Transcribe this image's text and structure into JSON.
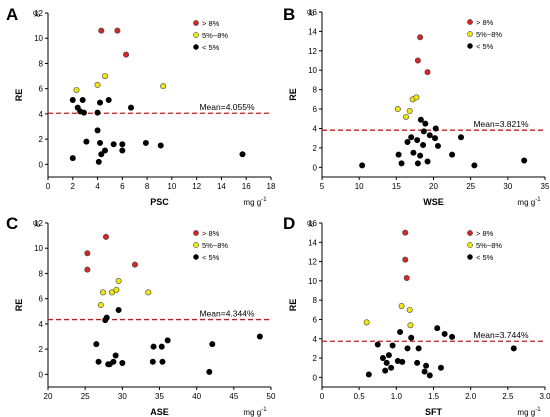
{
  "figure": {
    "legend": [
      {
        "label": "> 8%",
        "color": "#d62728"
      },
      {
        "label": "5%~8%",
        "color": "#f0e612"
      },
      {
        "label": "< 5%",
        "color": "#000000"
      }
    ],
    "threshold_line_color": "#b22222"
  },
  "chart_data": [
    {
      "panel": "A",
      "type": "scatter",
      "xlabel": "PSC",
      "xunit": "mg g",
      "xunit_exp": "-1",
      "ylabel": "RE",
      "yunit": "%",
      "xlim": [
        0,
        18
      ],
      "ylim": [
        -1,
        12
      ],
      "xticks": [
        0,
        2,
        4,
        6,
        8,
        10,
        12,
        14,
        16,
        18
      ],
      "yticks": [
        0,
        2,
        4,
        6,
        8,
        10,
        12
      ],
      "mean": 4.055,
      "mean_label": "Mean=4.055%",
      "points_red": [
        [
          4.3,
          10.6
        ],
        [
          5.6,
          10.6
        ],
        [
          6.3,
          8.7
        ]
      ],
      "points_yellow": [
        [
          2.3,
          5.9
        ],
        [
          4.0,
          6.3
        ],
        [
          4.6,
          7.0
        ],
        [
          9.3,
          6.2
        ]
      ],
      "points_black": [
        [
          2.0,
          5.1
        ],
        [
          2.8,
          5.1
        ],
        [
          2.4,
          4.5
        ],
        [
          2.6,
          4.2
        ],
        [
          2.9,
          4.1
        ],
        [
          4.0,
          4.1
        ],
        [
          4.2,
          4.9
        ],
        [
          4.9,
          5.1
        ],
        [
          6.7,
          4.5
        ],
        [
          4.0,
          2.7
        ],
        [
          4.2,
          1.7
        ],
        [
          4.6,
          1.1
        ],
        [
          5.3,
          1.6
        ],
        [
          6.0,
          1.6
        ],
        [
          6.0,
          1.1
        ],
        [
          7.9,
          1.7
        ],
        [
          9.1,
          1.5
        ],
        [
          4.3,
          0.8
        ],
        [
          4.1,
          0.2
        ],
        [
          2.0,
          0.5
        ],
        [
          15.7,
          0.8
        ],
        [
          3.1,
          1.8
        ]
      ]
    },
    {
      "panel": "B",
      "type": "scatter",
      "xlabel": "WSE",
      "xunit": "mg g",
      "xunit_exp": "-1",
      "ylabel": "RE",
      "yunit": "%",
      "xlim": [
        5,
        35
      ],
      "ylim": [
        -1,
        16
      ],
      "xticks": [
        5,
        10,
        15,
        20,
        25,
        30,
        35
      ],
      "yticks": [
        0,
        2,
        4,
        6,
        8,
        10,
        12,
        14,
        16
      ],
      "mean": 3.821,
      "mean_label": "Mean=3.821%",
      "points_red": [
        [
          18.2,
          13.4
        ],
        [
          17.9,
          11.0
        ],
        [
          19.2,
          9.8
        ]
      ],
      "points_yellow": [
        [
          15.2,
          6.0
        ],
        [
          16.8,
          5.8
        ],
        [
          17.2,
          7.0
        ],
        [
          17.7,
          7.2
        ],
        [
          16.3,
          5.2
        ]
      ],
      "points_black": [
        [
          18.3,
          4.9
        ],
        [
          18.9,
          4.5
        ],
        [
          18.7,
          3.7
        ],
        [
          19.5,
          3.3
        ],
        [
          20.2,
          3.0
        ],
        [
          20.3,
          4.0
        ],
        [
          23.7,
          3.1
        ],
        [
          17.0,
          3.1
        ],
        [
          17.8,
          2.8
        ],
        [
          16.5,
          2.6
        ],
        [
          18.6,
          2.3
        ],
        [
          20.6,
          2.2
        ],
        [
          22.5,
          1.3
        ],
        [
          17.3,
          1.5
        ],
        [
          15.3,
          1.3
        ],
        [
          18.2,
          1.2
        ],
        [
          15.7,
          0.4
        ],
        [
          17.9,
          0.4
        ],
        [
          19.2,
          0.6
        ],
        [
          10.4,
          0.2
        ],
        [
          25.5,
          0.2
        ],
        [
          32.2,
          0.7
        ]
      ]
    },
    {
      "panel": "C",
      "type": "scatter",
      "xlabel": "ASE",
      "xunit": "mg g",
      "xunit_exp": "-1",
      "ylabel": "RE",
      "yunit": "%",
      "xlim": [
        20,
        50
      ],
      "ylim": [
        -1,
        12
      ],
      "xticks": [
        20,
        25,
        30,
        35,
        40,
        45,
        50
      ],
      "yticks": [
        0,
        2,
        4,
        6,
        8,
        10,
        12
      ],
      "mean": 4.344,
      "mean_label": "Mean=4.344%",
      "points_red": [
        [
          27.8,
          10.9
        ],
        [
          25.3,
          9.6
        ],
        [
          25.3,
          8.3
        ],
        [
          31.7,
          8.7
        ]
      ],
      "points_yellow": [
        [
          27.1,
          5.5
        ],
        [
          27.4,
          6.5
        ],
        [
          28.6,
          6.5
        ],
        [
          29.2,
          6.7
        ],
        [
          29.5,
          7.4
        ],
        [
          33.5,
          6.5
        ]
      ],
      "points_black": [
        [
          27.9,
          4.5
        ],
        [
          29.5,
          5.1
        ],
        [
          27.7,
          4.3
        ],
        [
          26.5,
          2.4
        ],
        [
          34.2,
          2.2
        ],
        [
          35.3,
          2.2
        ],
        [
          36.1,
          2.7
        ],
        [
          42.1,
          2.4
        ],
        [
          48.5,
          3.0
        ],
        [
          26.8,
          1.0
        ],
        [
          28.1,
          0.8
        ],
        [
          28.8,
          1.0
        ],
        [
          29.1,
          1.5
        ],
        [
          30.0,
          0.9
        ],
        [
          34.1,
          1.0
        ],
        [
          35.4,
          1.0
        ],
        [
          28.3,
          0.8
        ],
        [
          41.7,
          0.2
        ]
      ]
    },
    {
      "panel": "D",
      "type": "scatter",
      "xlabel": "SFT",
      "xunit": "mg g",
      "xunit_exp": "-1",
      "ylabel": "RE",
      "yunit": "%",
      "xlim": [
        0,
        3.0
      ],
      "ylim": [
        -1,
        16
      ],
      "xticks": [
        0,
        0.5,
        1.0,
        1.5,
        2.0,
        2.5,
        3.0
      ],
      "yticks": [
        0,
        2,
        4,
        6,
        8,
        10,
        12,
        14,
        16
      ],
      "mean": 3.744,
      "mean_label": "Mean=3.744%",
      "points_red": [
        [
          1.12,
          15.0
        ],
        [
          1.12,
          12.2
        ],
        [
          1.14,
          10.3
        ]
      ],
      "points_yellow": [
        [
          0.6,
          5.7
        ],
        [
          1.07,
          7.4
        ],
        [
          1.18,
          7.0
        ],
        [
          1.19,
          5.4
        ]
      ],
      "points_black": [
        [
          1.05,
          4.7
        ],
        [
          1.2,
          4.1
        ],
        [
          1.55,
          5.1
        ],
        [
          1.65,
          4.5
        ],
        [
          1.75,
          4.2
        ],
        [
          0.75,
          3.4
        ],
        [
          0.95,
          3.3
        ],
        [
          1.15,
          3.0
        ],
        [
          1.3,
          3.0
        ],
        [
          0.82,
          2.0
        ],
        [
          0.9,
          2.3
        ],
        [
          0.87,
          1.5
        ],
        [
          1.02,
          1.7
        ],
        [
          1.08,
          1.6
        ],
        [
          1.28,
          1.5
        ],
        [
          1.4,
          1.2
        ],
        [
          1.6,
          1.0
        ],
        [
          0.93,
          1.0
        ],
        [
          0.85,
          0.7
        ],
        [
          1.38,
          0.6
        ],
        [
          1.45,
          0.2
        ],
        [
          0.63,
          0.3
        ],
        [
          2.58,
          3.0
        ]
      ]
    }
  ]
}
